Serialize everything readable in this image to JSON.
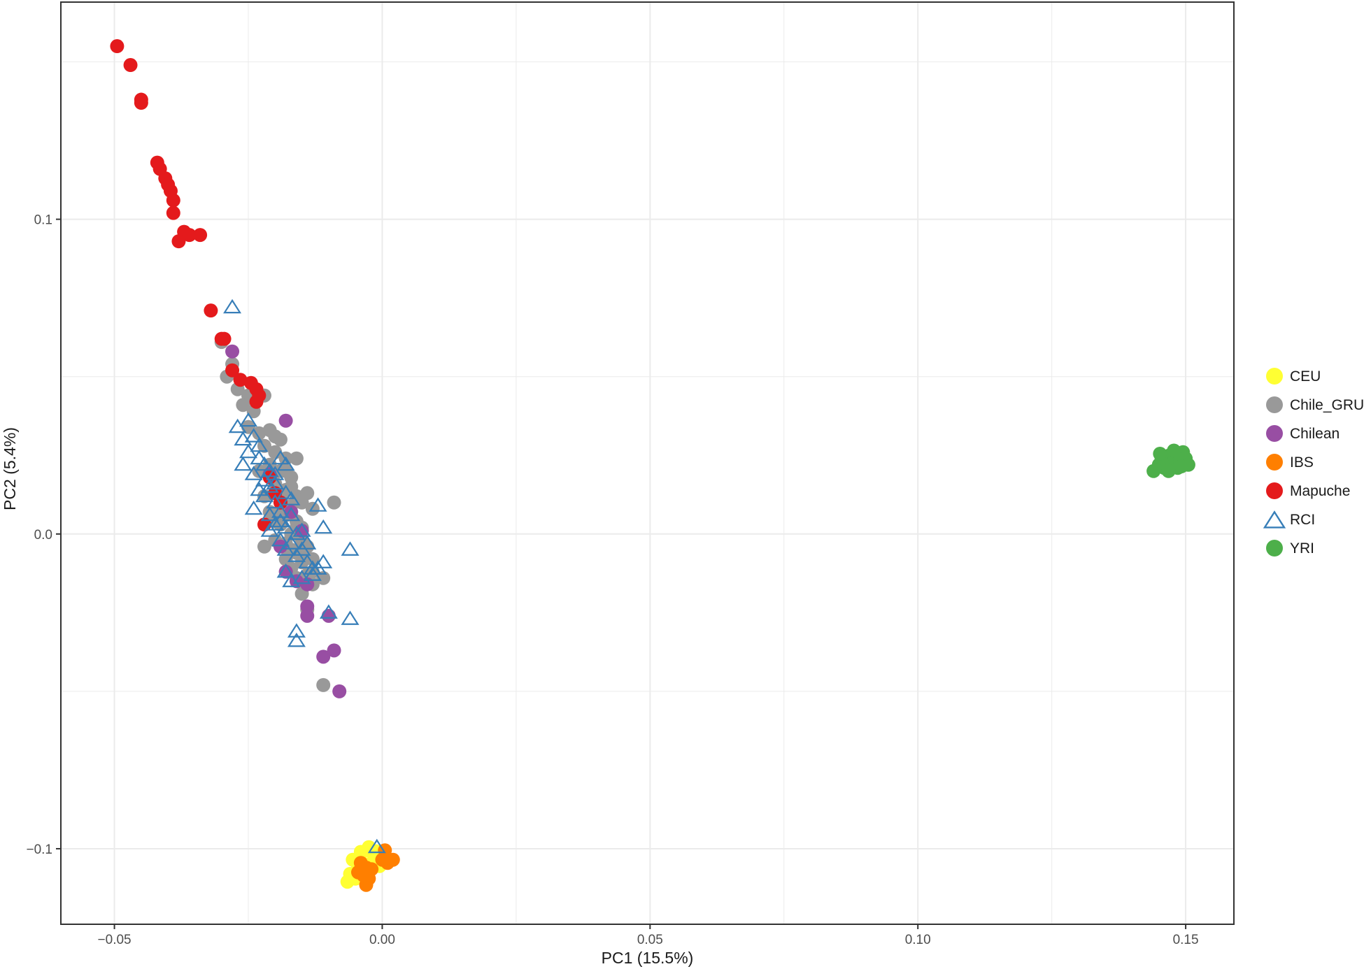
{
  "chart_data": {
    "type": "scatter",
    "title": "",
    "xlabel": "PC1 (15.5%)",
    "ylabel": "PC2 (5.4%)",
    "xlim": [
      -0.06,
      0.159
    ],
    "ylim": [
      -0.124,
      0.169
    ],
    "x_ticks": [
      -0.05,
      0.0,
      0.05,
      0.1,
      0.15
    ],
    "x_tick_labels": [
      "-0.05",
      "0.00",
      "0.05",
      "0.10",
      "0.15"
    ],
    "y_ticks": [
      -0.1,
      0.0,
      0.1
    ],
    "y_tick_labels": [
      "-0.1",
      "0.0",
      "0.1"
    ],
    "grid": true,
    "legend_position": "right",
    "series": [
      {
        "name": "CEU",
        "color": "#FFFF33",
        "shape": "circle",
        "points": [
          [
            -0.0055,
            -0.1035
          ],
          [
            -0.004,
            -0.101
          ],
          [
            -0.0025,
            -0.1005
          ],
          [
            -0.0015,
            -0.102
          ],
          [
            -0.0045,
            -0.1055
          ],
          [
            -0.006,
            -0.108
          ],
          [
            -0.0035,
            -0.1075
          ],
          [
            -0.002,
            -0.1045
          ],
          [
            -0.001,
            -0.1025
          ],
          [
            -0.0005,
            -0.1055
          ],
          [
            -0.0065,
            -0.1105
          ],
          [
            -0.005,
            -0.1095
          ],
          [
            -0.003,
            -0.1085
          ],
          [
            -0.0025,
            -0.0995
          ],
          [
            -0.0012,
            -0.1008
          ],
          [
            -0.0042,
            -0.1025
          ]
        ]
      },
      {
        "name": "Chile_GRU",
        "color": "#999999",
        "shape": "circle",
        "points": [
          [
            -0.03,
            0.061
          ],
          [
            -0.028,
            0.054
          ],
          [
            -0.029,
            0.05
          ],
          [
            -0.027,
            0.046
          ],
          [
            -0.025,
            0.044
          ],
          [
            -0.026,
            0.041
          ],
          [
            -0.024,
            0.039
          ],
          [
            -0.022,
            0.044
          ],
          [
            -0.025,
            0.034
          ],
          [
            -0.023,
            0.032
          ],
          [
            -0.021,
            0.033
          ],
          [
            -0.02,
            0.031
          ],
          [
            -0.019,
            0.03
          ],
          [
            -0.022,
            0.028
          ],
          [
            -0.02,
            0.026
          ],
          [
            -0.018,
            0.024
          ],
          [
            -0.016,
            0.024
          ],
          [
            -0.021,
            0.022
          ],
          [
            -0.019,
            0.02
          ],
          [
            -0.017,
            0.018
          ],
          [
            -0.02,
            0.016
          ],
          [
            -0.018,
            0.014
          ],
          [
            -0.016,
            0.012
          ],
          [
            -0.015,
            0.01
          ],
          [
            -0.019,
            0.012
          ],
          [
            -0.017,
            0.009
          ],
          [
            -0.014,
            0.013
          ],
          [
            -0.013,
            0.008
          ],
          [
            -0.009,
            0.01
          ],
          [
            -0.018,
            0.006
          ],
          [
            -0.016,
            0.004
          ],
          [
            -0.015,
            0.002
          ],
          [
            -0.019,
            0.003
          ],
          [
            -0.017,
            0.0
          ],
          [
            -0.015,
            -0.002
          ],
          [
            -0.014,
            -0.004
          ],
          [
            -0.022,
            -0.004
          ],
          [
            -0.02,
            -0.002
          ],
          [
            -0.018,
            -0.003
          ],
          [
            -0.016,
            -0.006
          ],
          [
            -0.015,
            -0.009
          ],
          [
            -0.013,
            -0.008
          ],
          [
            -0.017,
            -0.011
          ],
          [
            -0.016,
            -0.014
          ],
          [
            -0.014,
            -0.013
          ],
          [
            -0.015,
            -0.019
          ],
          [
            -0.014,
            -0.024
          ],
          [
            -0.013,
            -0.016
          ],
          [
            -0.011,
            -0.014
          ],
          [
            -0.011,
            -0.048
          ],
          [
            -0.021,
            0.018
          ],
          [
            -0.023,
            0.02
          ],
          [
            -0.018,
            0.02
          ],
          [
            -0.017,
            0.015
          ],
          [
            -0.021,
            0.007
          ],
          [
            -0.019,
            0.007
          ],
          [
            -0.016,
            0.002
          ],
          [
            -0.018,
            -0.008
          ],
          [
            -0.015,
            -0.007
          ],
          [
            -0.013,
            -0.012
          ],
          [
            -0.017,
            -0.005
          ],
          [
            -0.02,
            0.004
          ],
          [
            -0.022,
            0.012
          ]
        ]
      },
      {
        "name": "Chilean",
        "color": "#984EA3",
        "shape": "circle",
        "points": [
          [
            -0.028,
            0.058
          ],
          [
            -0.018,
            0.036
          ],
          [
            -0.021,
            0.019
          ],
          [
            -0.019,
            0.01
          ],
          [
            -0.017,
            0.007
          ],
          [
            -0.018,
            -0.012
          ],
          [
            -0.016,
            -0.015
          ],
          [
            -0.014,
            -0.016
          ],
          [
            -0.014,
            -0.023
          ],
          [
            -0.014,
            -0.026
          ],
          [
            -0.01,
            -0.026
          ],
          [
            -0.011,
            -0.039
          ],
          [
            -0.009,
            -0.037
          ],
          [
            -0.008,
            -0.05
          ],
          [
            -0.019,
            -0.004
          ],
          [
            -0.015,
            0.001
          ]
        ]
      },
      {
        "name": "IBS",
        "color": "#FF7F00",
        "shape": "circle",
        "points": [
          [
            -0.004,
            -0.1045
          ],
          [
            -0.003,
            -0.106
          ],
          [
            -0.0045,
            -0.1075
          ],
          [
            -0.0025,
            -0.1095
          ],
          [
            -0.003,
            -0.1115
          ],
          [
            0.0005,
            -0.1005
          ],
          [
            0.0,
            -0.1035
          ],
          [
            0.001,
            -0.1045
          ],
          [
            0.002,
            -0.1035
          ],
          [
            -0.002,
            -0.1065
          ],
          [
            -0.0035,
            -0.1085
          ],
          [
            0.0005,
            -0.103
          ]
        ]
      },
      {
        "name": "Mapuche",
        "color": "#E41A1C",
        "shape": "circle",
        "points": [
          [
            -0.0495,
            0.155
          ],
          [
            -0.047,
            0.149
          ],
          [
            -0.045,
            0.138
          ],
          [
            -0.045,
            0.137
          ],
          [
            -0.042,
            0.118
          ],
          [
            -0.0415,
            0.116
          ],
          [
            -0.0405,
            0.113
          ],
          [
            -0.04,
            0.111
          ],
          [
            -0.0395,
            0.109
          ],
          [
            -0.039,
            0.106
          ],
          [
            -0.039,
            0.102
          ],
          [
            -0.037,
            0.096
          ],
          [
            -0.038,
            0.093
          ],
          [
            -0.036,
            0.095
          ],
          [
            -0.034,
            0.095
          ],
          [
            -0.032,
            0.071
          ],
          [
            -0.03,
            0.062
          ],
          [
            -0.0295,
            0.062
          ],
          [
            -0.028,
            0.052
          ],
          [
            -0.0265,
            0.049
          ],
          [
            -0.0245,
            0.048
          ],
          [
            -0.0235,
            0.046
          ],
          [
            -0.023,
            0.044
          ],
          [
            -0.0235,
            0.042
          ],
          [
            -0.021,
            0.018
          ],
          [
            -0.019,
            0.01
          ],
          [
            -0.02,
            0.013
          ],
          [
            -0.022,
            0.003
          ]
        ]
      },
      {
        "name": "RCI",
        "color": "#377EB8",
        "shape": "triangle-open",
        "points": [
          [
            -0.028,
            0.072
          ],
          [
            -0.027,
            0.034
          ],
          [
            -0.025,
            0.036
          ],
          [
            -0.026,
            0.03
          ],
          [
            -0.024,
            0.031
          ],
          [
            -0.023,
            0.028
          ],
          [
            -0.025,
            0.026
          ],
          [
            -0.023,
            0.024
          ],
          [
            -0.022,
            0.022
          ],
          [
            -0.026,
            0.022
          ],
          [
            -0.024,
            0.019
          ],
          [
            -0.022,
            0.017
          ],
          [
            -0.021,
            0.015
          ],
          [
            -0.019,
            0.024
          ],
          [
            -0.018,
            0.022
          ],
          [
            -0.02,
            0.019
          ],
          [
            -0.023,
            0.014
          ],
          [
            -0.022,
            0.012
          ],
          [
            -0.02,
            0.01
          ],
          [
            -0.019,
            0.007
          ],
          [
            -0.024,
            0.008
          ],
          [
            -0.021,
            0.006
          ],
          [
            -0.019,
            0.004
          ],
          [
            -0.018,
            0.002
          ],
          [
            -0.021,
            0.001
          ],
          [
            -0.019,
            -0.002
          ],
          [
            -0.017,
            -0.003
          ],
          [
            -0.018,
            -0.005
          ],
          [
            -0.016,
            -0.007
          ],
          [
            -0.014,
            -0.009
          ],
          [
            -0.012,
            -0.011
          ],
          [
            -0.013,
            -0.013
          ],
          [
            -0.015,
            -0.014
          ],
          [
            -0.018,
            -0.012
          ],
          [
            -0.017,
            -0.015
          ],
          [
            -0.011,
            -0.009
          ],
          [
            -0.012,
            0.009
          ],
          [
            -0.011,
            0.002
          ],
          [
            -0.006,
            -0.005
          ],
          [
            -0.01,
            -0.025
          ],
          [
            -0.006,
            -0.027
          ],
          [
            -0.016,
            -0.031
          ],
          [
            -0.016,
            -0.034
          ],
          [
            -0.015,
            0.001
          ],
          [
            -0.014,
            -0.003
          ],
          [
            -0.001,
            -0.0995
          ],
          [
            -0.02,
            0.016
          ],
          [
            -0.018,
            0.013
          ],
          [
            -0.017,
            0.011
          ],
          [
            -0.02,
            0.003
          ],
          [
            -0.016,
            0.0
          ],
          [
            -0.015,
            -0.005
          ],
          [
            -0.013,
            -0.011
          ],
          [
            -0.021,
            0.02
          ],
          [
            -0.017,
            0.006
          ]
        ]
      },
      {
        "name": "YRI",
        "color": "#4DAF4A",
        "shape": "circle",
        "points": [
          [
            0.144,
            0.02
          ],
          [
            0.145,
            0.022
          ],
          [
            0.1455,
            0.024
          ],
          [
            0.146,
            0.021
          ],
          [
            0.1465,
            0.023
          ],
          [
            0.147,
            0.025
          ],
          [
            0.1475,
            0.022
          ],
          [
            0.148,
            0.024
          ],
          [
            0.1485,
            0.021
          ],
          [
            0.149,
            0.023
          ],
          [
            0.1495,
            0.026
          ],
          [
            0.15,
            0.024
          ],
          [
            0.1505,
            0.022
          ],
          [
            0.1468,
            0.02
          ],
          [
            0.1452,
            0.0255
          ],
          [
            0.1478,
            0.0265
          ],
          [
            0.1492,
            0.0215
          ]
        ]
      }
    ]
  }
}
